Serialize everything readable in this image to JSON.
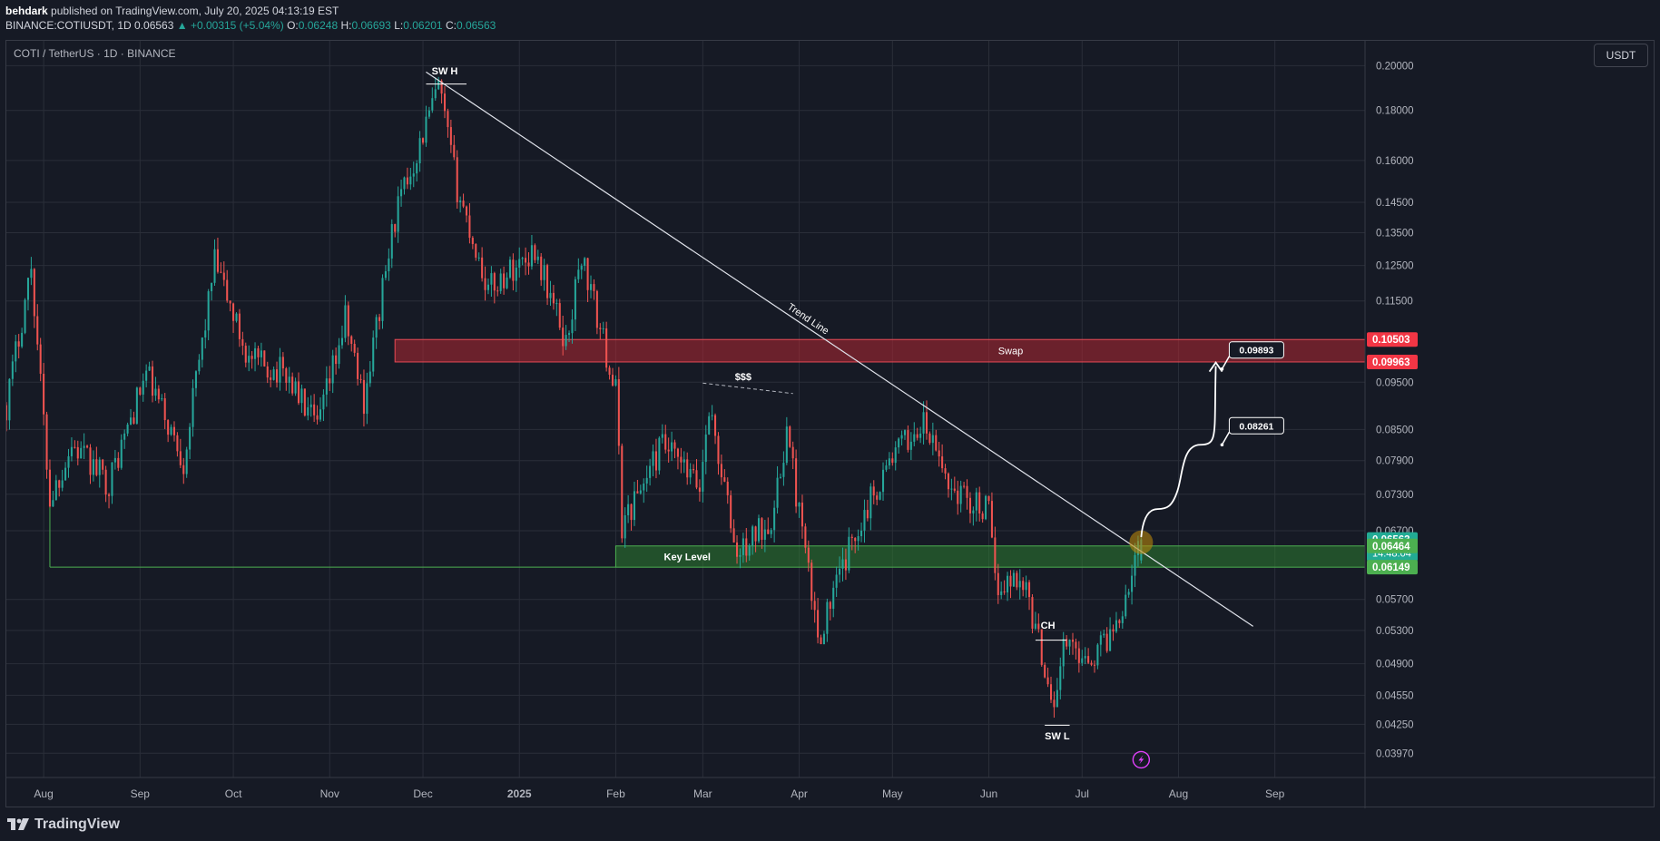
{
  "header": {
    "publisher": "behdark",
    "published_text": " published on TradingView.com, July 20, 2025 04:13:19 EST",
    "symbol_line_prefix": "BINANCE:COTIUSDT, 1D 0.06563",
    "change": "▲ +0.00315 (+5.04%)",
    "ohlc": [
      {
        "label": "O:",
        "value": "0.06248"
      },
      {
        "label": "H:",
        "value": "0.06693"
      },
      {
        "label": "L:",
        "value": "0.06201"
      },
      {
        "label": "C:",
        "value": "0.06563"
      }
    ]
  },
  "legend_title": "COTI / TetherUS · 1D · BINANCE",
  "currency_button": "USDT",
  "footer_logo": "TradingView",
  "colors": {
    "background": "#161a25",
    "up": "#26a69a",
    "down": "#ef5350",
    "grid": "#2a2e39",
    "swap_zone": "#b22833",
    "key_zone": "#2e7d32",
    "trend": "#e0e3eb"
  },
  "chart_data": {
    "type": "candlestick",
    "title": "COTI / TetherUS · 1D · BINANCE",
    "x_axis_labels": [
      "Aug",
      "Sep",
      "Oct",
      "Nov",
      "Dec",
      "2025",
      "Feb",
      "Mar",
      "Apr",
      "May",
      "Jun",
      "Jul",
      "Aug",
      "Sep"
    ],
    "x_axis_dates": [
      "2024-08-01",
      "2024-09-01",
      "2024-10-01",
      "2024-11-01",
      "2024-12-01",
      "2025-01-01",
      "2025-02-01",
      "2025-03-01",
      "2025-04-01",
      "2025-05-01",
      "2025-06-01",
      "2025-07-01",
      "2025-08-01",
      "2025-09-01"
    ],
    "y_axis_ticks": [
      "0.20000",
      "0.18000",
      "0.16000",
      "0.14500",
      "0.13500",
      "0.12500",
      "0.11500",
      "0.09500",
      "0.08500",
      "0.07900",
      "0.07300",
      "0.06700",
      "0.05700",
      "0.05300",
      "0.04900",
      "0.04550",
      "0.04250",
      "0.03970"
    ],
    "y_scale": "log",
    "ylim": [
      0.0375,
      0.212
    ],
    "xlim": [
      "2024-07-20",
      "2025-09-30"
    ],
    "key_points": [
      {
        "date": "2024-07-20",
        "price": 0.09
      },
      {
        "date": "2024-07-28",
        "price": 0.125
      },
      {
        "date": "2024-08-03",
        "price": 0.072
      },
      {
        "date": "2024-08-10",
        "price": 0.082
      },
      {
        "date": "2024-08-22",
        "price": 0.075
      },
      {
        "date": "2024-09-03",
        "price": 0.097
      },
      {
        "date": "2024-09-15",
        "price": 0.079
      },
      {
        "date": "2024-09-25",
        "price": 0.126
      },
      {
        "date": "2024-10-06",
        "price": 0.1
      },
      {
        "date": "2024-10-18",
        "price": 0.097
      },
      {
        "date": "2024-10-28",
        "price": 0.085
      },
      {
        "date": "2024-11-06",
        "price": 0.11
      },
      {
        "date": "2024-11-12",
        "price": 0.091
      },
      {
        "date": "2024-11-22",
        "price": 0.14
      },
      {
        "date": "2024-12-06",
        "price": 0.19
      },
      {
        "date": "2024-12-12",
        "price": 0.15
      },
      {
        "date": "2024-12-22",
        "price": 0.118
      },
      {
        "date": "2025-01-06",
        "price": 0.13
      },
      {
        "date": "2025-01-16",
        "price": 0.104
      },
      {
        "date": "2025-01-21",
        "price": 0.128
      },
      {
        "date": "2025-02-01",
        "price": 0.093
      },
      {
        "date": "2025-02-03",
        "price": 0.068
      },
      {
        "date": "2025-02-16",
        "price": 0.082
      },
      {
        "date": "2025-02-28",
        "price": 0.074
      },
      {
        "date": "2025-03-03",
        "price": 0.09
      },
      {
        "date": "2025-03-12",
        "price": 0.063
      },
      {
        "date": "2025-03-24",
        "price": 0.07
      },
      {
        "date": "2025-03-28",
        "price": 0.085
      },
      {
        "date": "2025-04-07",
        "price": 0.052
      },
      {
        "date": "2025-04-20",
        "price": 0.068
      },
      {
        "date": "2025-05-01",
        "price": 0.08
      },
      {
        "date": "2025-05-11",
        "price": 0.086
      },
      {
        "date": "2025-05-20",
        "price": 0.074
      },
      {
        "date": "2025-06-01",
        "price": 0.07
      },
      {
        "date": "2025-06-03",
        "price": 0.059
      },
      {
        "date": "2025-06-12",
        "price": 0.06
      },
      {
        "date": "2025-06-22",
        "price": 0.0445
      },
      {
        "date": "2025-06-25",
        "price": 0.051
      },
      {
        "date": "2025-07-05",
        "price": 0.05
      },
      {
        "date": "2025-07-12",
        "price": 0.054
      },
      {
        "date": "2025-07-20",
        "price": 0.06563
      }
    ],
    "price_labels": [
      {
        "value": "0.10503",
        "color": "#f23645"
      },
      {
        "value": "0.09963",
        "color": "#f23645"
      },
      {
        "value": "0.06563",
        "color": "#22ab94",
        "sub": "14:48:04"
      },
      {
        "value": "0.06464",
        "color": "#4caf50"
      },
      {
        "value": "0.06149",
        "color": "#4caf50"
      }
    ],
    "zones": [
      {
        "name": "Swap",
        "from_date": "2024-11-22",
        "to_date": "2025-09-30",
        "low": 0.09963,
        "high": 0.10503
      },
      {
        "name": "Key Level",
        "from_date": "2025-02-01",
        "to_date": "2025-09-30",
        "low": 0.06149,
        "high": 0.06464
      }
    ],
    "key_level_line": {
      "price": 0.0615,
      "from_date": "2024-08-03"
    },
    "trend_line": {
      "label": "Trend Line",
      "p1": {
        "date": "2024-12-02",
        "price": 0.197
      },
      "p2": {
        "date": "2025-08-25",
        "price": 0.0535
      }
    },
    "annotations": [
      {
        "text": "SW H",
        "date": "2024-12-08",
        "price": 0.196
      },
      {
        "text": "$$$",
        "date": "2025-03-14",
        "price": 0.0955
      },
      {
        "text": "CH",
        "date": "2025-06-20",
        "price": 0.0532
      },
      {
        "text": "SW L",
        "date": "2025-06-23",
        "price": 0.041
      }
    ],
    "targets": [
      {
        "value": "0.09893",
        "date": "2025-08-15",
        "price": 0.098
      },
      {
        "value": "0.08261",
        "date": "2025-08-15",
        "price": 0.082
      }
    ],
    "projection_end": {
      "date": "2025-08-13",
      "price": 0.0995
    }
  }
}
